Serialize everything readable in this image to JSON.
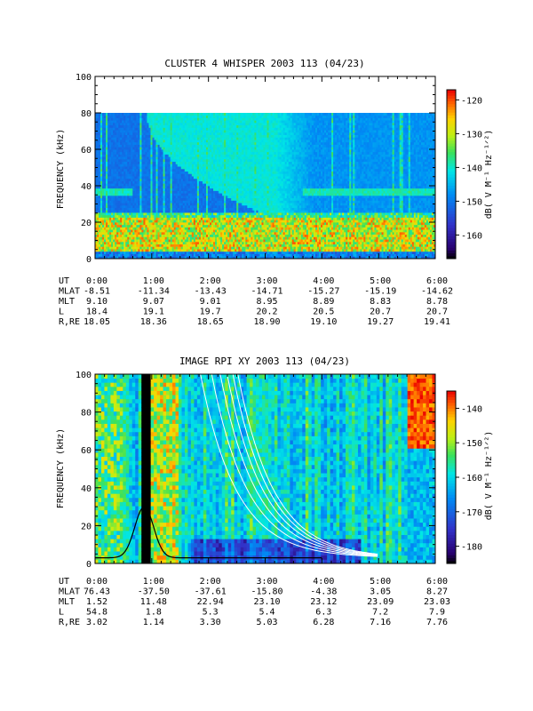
{
  "chart_data": [
    {
      "type": "heatmap",
      "title": "CLUSTER 4 WHISPER 2003 113 (04/23)",
      "ylabel": "FREQUENCY (kHz)",
      "ylim": [
        0,
        100
      ],
      "yticks": [
        "0",
        "20",
        "40",
        "60",
        "80",
        "100"
      ],
      "xlim": [
        "0:00",
        "6:00"
      ],
      "xticks": [
        "0:00",
        "1:00",
        "2:00",
        "3:00",
        "4:00",
        "5:00",
        "6:00"
      ],
      "data_top_khz": 80,
      "colorbar": {
        "label": "dB( V M⁻¹ Hz⁻¹ᐟ²)",
        "range": [
          -167,
          -117
        ],
        "ticks": [
          "-120",
          "-130",
          "-140",
          "-150",
          "-160"
        ]
      },
      "features": {
        "noise_band_khz": [
          10,
          22
        ],
        "plasma_line_khz": 37,
        "emission_start_khz": 80,
        "emission_end_khz": 22,
        "emission_span": [
          "0:55",
          "3:10"
        ]
      },
      "ephemeris": [
        {
          "label": "UT",
          "values": [
            "0:00",
            "1:00",
            "2:00",
            "3:00",
            "4:00",
            "5:00",
            "6:00"
          ]
        },
        {
          "label": "MLAT",
          "values": [
            "-8.51",
            "-11.34",
            "-13.43",
            "-14.71",
            "-15.27",
            "-15.19",
            "-14.62"
          ]
        },
        {
          "label": "MLT",
          "values": [
            "9.10",
            "9.07",
            "9.01",
            "8.95",
            "8.89",
            "8.83",
            "8.78"
          ]
        },
        {
          "label": "L",
          "values": [
            "18.4",
            "19.1",
            "19.7",
            "20.2",
            "20.5",
            "20.7",
            "20.7"
          ]
        },
        {
          "label": "R,RE",
          "values": [
            "18.05",
            "18.36",
            "18.65",
            "18.90",
            "19.10",
            "19.27",
            "19.41"
          ]
        }
      ]
    },
    {
      "type": "heatmap",
      "title": "IMAGE RPI XY 2003 113 (04/23)",
      "ylabel": "FREQUENCY (kHz)",
      "ylim": [
        0,
        100
      ],
      "yticks": [
        "0",
        "20",
        "40",
        "60",
        "80",
        "100"
      ],
      "xlim": [
        "0:00",
        "6:00"
      ],
      "xticks": [
        "0:00",
        "1:00",
        "2:00",
        "3:00",
        "4:00",
        "5:00",
        "6:00"
      ],
      "colorbar": {
        "label": "dB( V M⁻¹ Hz⁻¹ᐟ²)",
        "range": [
          -185,
          -135
        ],
        "ticks": [
          "-140",
          "-150",
          "-160",
          "-170",
          "-180"
        ]
      },
      "features": {
        "black_gap": [
          "0:48",
          "0:58"
        ],
        "white_cutoff_curves_count": 6,
        "black_cyclotron_curve": true
      },
      "ephemeris": [
        {
          "label": "UT",
          "values": [
            "0:00",
            "1:00",
            "2:00",
            "3:00",
            "4:00",
            "5:00",
            "6:00"
          ]
        },
        {
          "label": "MLAT",
          "values": [
            "76.43",
            "-37.50",
            "-37.61",
            "-15.80",
            "-4.38",
            "3.05",
            "8.27"
          ]
        },
        {
          "label": "MLT",
          "values": [
            "1.52",
            "11.48",
            "22.94",
            "23.10",
            "23.12",
            "23.09",
            "23.03"
          ]
        },
        {
          "label": "L",
          "values": [
            "54.8",
            "1.8",
            "5.3",
            "5.4",
            "6.3",
            "7.2",
            "7.9"
          ]
        },
        {
          "label": "R,RE",
          "values": [
            "3.02",
            "1.14",
            "3.30",
            "5.03",
            "6.28",
            "7.16",
            "7.76"
          ]
        }
      ]
    }
  ]
}
